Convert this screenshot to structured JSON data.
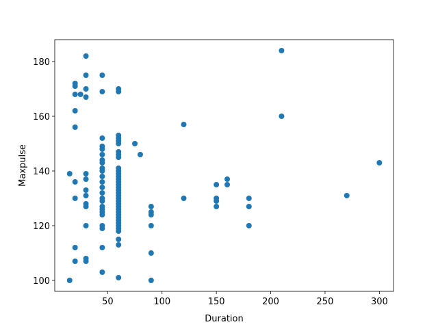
{
  "chart_data": {
    "type": "scatter",
    "title": "",
    "xlabel": "Duration",
    "ylabel": "Maxpulse",
    "xlim": [
      1.3,
      313
    ],
    "ylim": [
      96,
      188
    ],
    "xticks": [
      50,
      100,
      150,
      200,
      250,
      300
    ],
    "yticks": [
      100,
      120,
      140,
      160,
      180
    ],
    "grid": false,
    "color": "#1f77b4",
    "points": [
      [
        15,
        139
      ],
      [
        15,
        100
      ],
      [
        20,
        172
      ],
      [
        20,
        171
      ],
      [
        20,
        168
      ],
      [
        20,
        162
      ],
      [
        20,
        156
      ],
      [
        20,
        136
      ],
      [
        20,
        130
      ],
      [
        20,
        112
      ],
      [
        20,
        107
      ],
      [
        25,
        168
      ],
      [
        30,
        182
      ],
      [
        30,
        175
      ],
      [
        30,
        170
      ],
      [
        30,
        167
      ],
      [
        30,
        139
      ],
      [
        30,
        137
      ],
      [
        30,
        133
      ],
      [
        30,
        131
      ],
      [
        30,
        128
      ],
      [
        30,
        127
      ],
      [
        30,
        120
      ],
      [
        30,
        108
      ],
      [
        30,
        107
      ],
      [
        45,
        175
      ],
      [
        45,
        169
      ],
      [
        45,
        152
      ],
      [
        45,
        149
      ],
      [
        45,
        148
      ],
      [
        45,
        146
      ],
      [
        45,
        144
      ],
      [
        45,
        143
      ],
      [
        45,
        141
      ],
      [
        45,
        140
      ],
      [
        45,
        138
      ],
      [
        45,
        136
      ],
      [
        45,
        134
      ],
      [
        45,
        132
      ],
      [
        45,
        130
      ],
      [
        45,
        129
      ],
      [
        45,
        127
      ],
      [
        45,
        126
      ],
      [
        45,
        125
      ],
      [
        45,
        124
      ],
      [
        45,
        120
      ],
      [
        45,
        119
      ],
      [
        45,
        112
      ],
      [
        45,
        103
      ],
      [
        60,
        170
      ],
      [
        60,
        169
      ],
      [
        60,
        153
      ],
      [
        60,
        152
      ],
      [
        60,
        151
      ],
      [
        60,
        150
      ],
      [
        60,
        147
      ],
      [
        60,
        146
      ],
      [
        60,
        145
      ],
      [
        60,
        141
      ],
      [
        60,
        140
      ],
      [
        60,
        139
      ],
      [
        60,
        138
      ],
      [
        60,
        137
      ],
      [
        60,
        136
      ],
      [
        60,
        135
      ],
      [
        60,
        134
      ],
      [
        60,
        133
      ],
      [
        60,
        132
      ],
      [
        60,
        131
      ],
      [
        60,
        130
      ],
      [
        60,
        129
      ],
      [
        60,
        128
      ],
      [
        60,
        127
      ],
      [
        60,
        126
      ],
      [
        60,
        125
      ],
      [
        60,
        124
      ],
      [
        60,
        123
      ],
      [
        60,
        122
      ],
      [
        60,
        121
      ],
      [
        60,
        120
      ],
      [
        60,
        119
      ],
      [
        60,
        118
      ],
      [
        60,
        115
      ],
      [
        60,
        113
      ],
      [
        60,
        101
      ],
      [
        75,
        150
      ],
      [
        80,
        146
      ],
      [
        90,
        127
      ],
      [
        90,
        125
      ],
      [
        90,
        124
      ],
      [
        90,
        120
      ],
      [
        90,
        110
      ],
      [
        90,
        100
      ],
      [
        120,
        157
      ],
      [
        120,
        130
      ],
      [
        150,
        135
      ],
      [
        150,
        130
      ],
      [
        150,
        129
      ],
      [
        150,
        127
      ],
      [
        160,
        137
      ],
      [
        160,
        135
      ],
      [
        180,
        130
      ],
      [
        180,
        127
      ],
      [
        180,
        120
      ],
      [
        210,
        184
      ],
      [
        210,
        160
      ],
      [
        270,
        131
      ],
      [
        300,
        143
      ]
    ]
  }
}
